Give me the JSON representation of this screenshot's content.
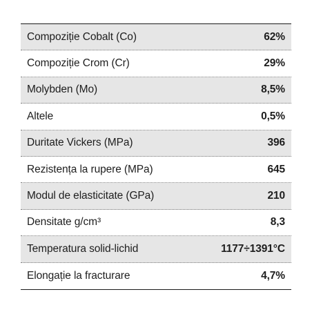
{
  "table": {
    "rows": [
      {
        "label": "Compoziție Cobalt (Co)",
        "value": "62%"
      },
      {
        "label": "Compoziție Crom (Cr)",
        "value": "29%"
      },
      {
        "label": "Molybden (Mo)",
        "value": "8,5%"
      },
      {
        "label": "Altele",
        "value": "0,5%"
      },
      {
        "label": "Duritate Vickers (MPa)",
        "value": "396"
      },
      {
        "label": "Rezistența la rupere (MPa)",
        "value": "645"
      },
      {
        "label": "Modul de elasticitate (GPa)",
        "value": "210"
      },
      {
        "label": "Densitate g/cm³",
        "value": "8,3"
      },
      {
        "label": "Temperatura solid-lichid",
        "value": "1177÷1391°C"
      },
      {
        "label": "Elongație la fracturare",
        "value": "4,7%"
      }
    ]
  },
  "colors": {
    "row_shade": "#e6e6e6",
    "text": "#1e1e1e",
    "rule": "#1a1a1a"
  }
}
